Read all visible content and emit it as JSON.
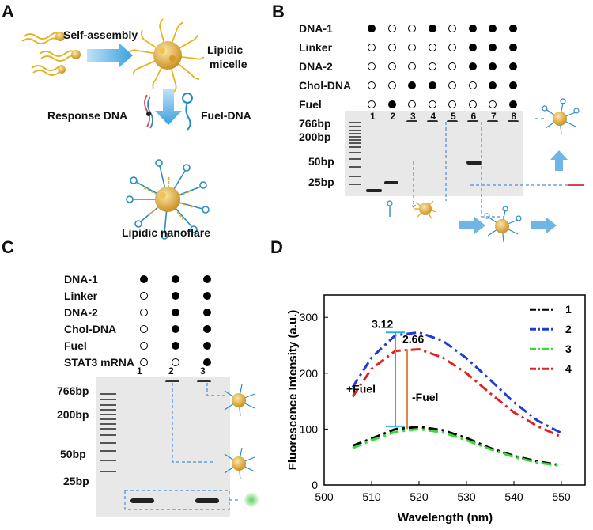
{
  "panels": {
    "a": {
      "label": "A",
      "self_assembly": "Self-assembly",
      "micelle_line1": "Lipidic",
      "micelle_line2": "micelle",
      "response_dna": "Response DNA",
      "fuel_dna": "Fuel-DNA",
      "nanoflare": "Lipidic nanoflare"
    },
    "b": {
      "label": "B",
      "rows": [
        {
          "name": "DNA-1",
          "dots": [
            1,
            0,
            0,
            1,
            0,
            1,
            1,
            1
          ]
        },
        {
          "name": "Linker",
          "dots": [
            0,
            0,
            0,
            0,
            0,
            1,
            1,
            1
          ]
        },
        {
          "name": "DNA-2",
          "dots": [
            0,
            0,
            0,
            0,
            0,
            1,
            1,
            1
          ]
        },
        {
          "name": "Chol-DNA",
          "dots": [
            0,
            0,
            1,
            1,
            0,
            0,
            1,
            1
          ]
        },
        {
          "name": "Fuel",
          "dots": [
            0,
            1,
            0,
            0,
            0,
            0,
            0,
            1
          ]
        }
      ],
      "lanes": [
        "1",
        "2",
        "3",
        "4",
        "5",
        "6",
        "7",
        "8"
      ],
      "markers": [
        "766bp",
        "200bp",
        "50bp",
        "25bp"
      ]
    },
    "c": {
      "label": "C",
      "rows": [
        {
          "name": "DNA-1",
          "dots": [
            1,
            1,
            1
          ]
        },
        {
          "name": "Linker",
          "dots": [
            0,
            1,
            1
          ]
        },
        {
          "name": "DNA-2",
          "dots": [
            0,
            1,
            1
          ]
        },
        {
          "name": "Chol-DNA",
          "dots": [
            0,
            1,
            1
          ]
        },
        {
          "name": "Fuel",
          "dots": [
            0,
            1,
            1
          ]
        },
        {
          "name": "STAT3 mRNA",
          "dots": [
            0,
            0,
            1
          ]
        }
      ],
      "lanes": [
        "1",
        "2",
        "3"
      ],
      "markers": [
        "766bp",
        "200bp",
        "50bp",
        "25bp"
      ]
    },
    "d": {
      "label": "D",
      "annotations": {
        "val1": "3.12",
        "val2": "2.66",
        "plus_fuel": "+Fuel",
        "minus_fuel": "-Fuel"
      }
    }
  },
  "chart_data": {
    "type": "line",
    "title": "",
    "xlabel": "Wavelength (nm)",
    "ylabel": "Fluorescence Intensity  (a.u.)",
    "xlim": [
      500,
      555
    ],
    "ylim": [
      0,
      340
    ],
    "xticks": [
      500,
      510,
      520,
      530,
      540,
      550
    ],
    "yticks": [
      0,
      100,
      200,
      300
    ],
    "x": [
      506,
      510,
      515,
      520,
      525,
      530,
      535,
      540,
      545,
      550
    ],
    "series": [
      {
        "name": "1",
        "color": "#000000",
        "values": [
          70,
          83,
          100,
          104,
          98,
          84,
          66,
          52,
          42,
          35
        ]
      },
      {
        "name": "2",
        "color": "#1f3bd6",
        "values": [
          175,
          228,
          268,
          273,
          258,
          227,
          188,
          148,
          115,
          93
        ]
      },
      {
        "name": "3",
        "color": "#33dd33",
        "values": [
          66,
          80,
          95,
          100,
          94,
          80,
          64,
          50,
          40,
          34
        ]
      },
      {
        "name": "4",
        "color": "#e0231f",
        "values": [
          158,
          208,
          240,
          243,
          228,
          200,
          164,
          130,
          105,
          86
        ]
      }
    ]
  }
}
